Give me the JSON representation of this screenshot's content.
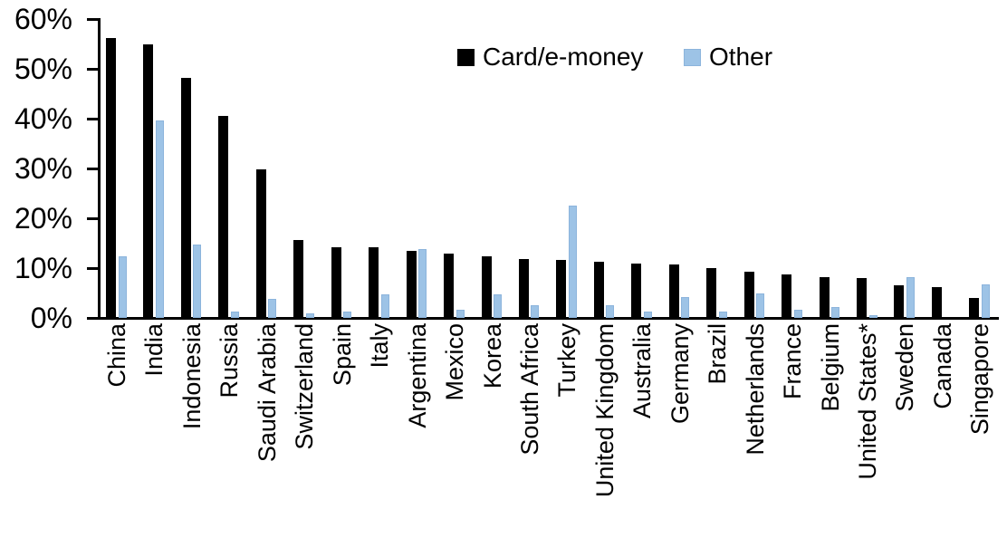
{
  "chart_data": {
    "type": "bar",
    "categories": [
      "China",
      "India",
      "Indonesia",
      "Russia",
      "Saudi Arabia",
      "Switzerland",
      "Spain",
      "Italy",
      "Argentina",
      "Mexico",
      "Korea",
      "South Africa",
      "Turkey",
      "United Kingdom",
      "Australia",
      "Germany",
      "Brazil",
      "Netherlands",
      "France",
      "Belgium",
      "United States*",
      "Sweden",
      "Canada",
      "Singapore"
    ],
    "series": [
      {
        "name": "Card/e-money",
        "color": "#000000",
        "values": [
          56.2,
          55.0,
          48.2,
          40.5,
          29.8,
          15.6,
          14.2,
          14.1,
          13.4,
          13.0,
          12.4,
          11.8,
          11.6,
          11.2,
          10.9,
          10.7,
          10.0,
          9.3,
          8.8,
          8.2,
          8.0,
          6.6,
          6.1,
          4.0
        ]
      },
      {
        "name": "Other",
        "color": "#9DC3E6",
        "values": [
          12.3,
          39.7,
          14.7,
          1.3,
          3.9,
          0.9,
          1.3,
          4.8,
          13.8,
          1.6,
          4.7,
          2.6,
          22.6,
          2.6,
          1.2,
          4.1,
          1.3,
          5.0,
          1.7,
          2.2,
          0.5,
          8.1,
          0,
          6.8
        ]
      }
    ],
    "xlabel": "",
    "ylabel": "",
    "ylim": [
      0,
      60
    ],
    "yticks": [
      "0%",
      "10%",
      "20%",
      "30%",
      "40%",
      "50%",
      "60%"
    ],
    "grid": false,
    "legend_position": "top-center"
  }
}
